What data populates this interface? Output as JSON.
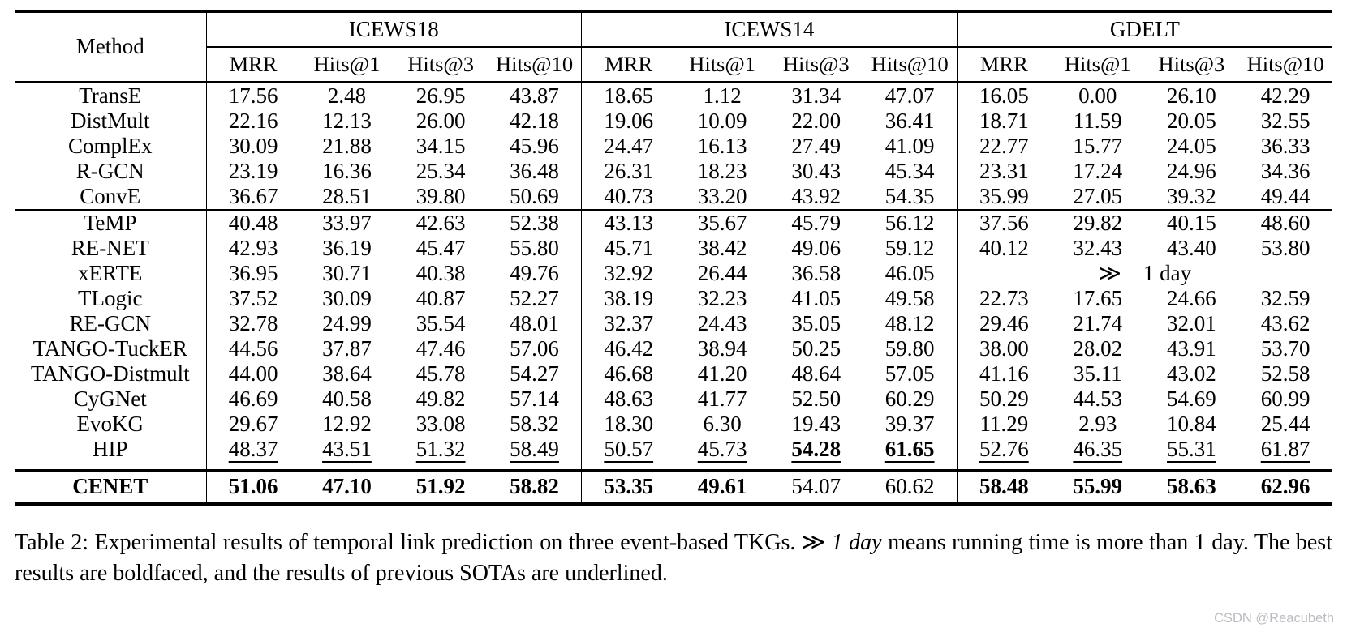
{
  "table": {
    "method_header": "Method",
    "datasets": [
      "ICEWS18",
      "ICEWS14",
      "GDELT"
    ],
    "metrics": [
      "MRR",
      "Hits@1",
      "Hits@3",
      "Hits@10"
    ],
    "groups": [
      {
        "rows": [
          {
            "method": "TransE",
            "cells": [
              "17.56",
              "2.48",
              "26.95",
              "43.87",
              "18.65",
              "1.12",
              "31.34",
              "47.07",
              "16.05",
              "0.00",
              "26.10",
              "42.29"
            ]
          },
          {
            "method": "DistMult",
            "cells": [
              "22.16",
              "12.13",
              "26.00",
              "42.18",
              "19.06",
              "10.09",
              "22.00",
              "36.41",
              "18.71",
              "11.59",
              "20.05",
              "32.55"
            ]
          },
          {
            "method": "ComplEx",
            "cells": [
              "30.09",
              "21.88",
              "34.15",
              "45.96",
              "24.47",
              "16.13",
              "27.49",
              "41.09",
              "22.77",
              "15.77",
              "24.05",
              "36.33"
            ]
          },
          {
            "method": "R-GCN",
            "cells": [
              "23.19",
              "16.36",
              "25.34",
              "36.48",
              "26.31",
              "18.23",
              "30.43",
              "45.34",
              "23.31",
              "17.24",
              "24.96",
              "34.36"
            ]
          },
          {
            "method": "ConvE",
            "cells": [
              "36.67",
              "28.51",
              "39.80",
              "50.69",
              "40.73",
              "33.20",
              "43.92",
              "54.35",
              "35.99",
              "27.05",
              "39.32",
              "49.44"
            ]
          }
        ]
      },
      {
        "rows": [
          {
            "method": "TeMP",
            "cells": [
              "40.48",
              "33.97",
              "42.63",
              "52.38",
              "43.13",
              "35.67",
              "45.79",
              "56.12",
              "37.56",
              "29.82",
              "40.15",
              "48.60"
            ]
          },
          {
            "method": "RE-NET",
            "cells": [
              "42.93",
              "36.19",
              "45.47",
              "55.80",
              "45.71",
              "38.42",
              "49.06",
              "59.12",
              "40.12",
              "32.43",
              "43.40",
              "53.80"
            ]
          },
          {
            "method": "xERTE",
            "cells": [
              "36.95",
              "30.71",
              "40.38",
              "49.76",
              "32.92",
              "26.44",
              "36.58",
              "46.05",
              {
                "t": "≫  1 day",
                "span": 4
              }
            ]
          },
          {
            "method": "TLogic",
            "cells": [
              "37.52",
              "30.09",
              "40.87",
              "52.27",
              "38.19",
              "32.23",
              "41.05",
              "49.58",
              "22.73",
              "17.65",
              "24.66",
              "32.59"
            ]
          },
          {
            "method": "RE-GCN",
            "cells": [
              "32.78",
              "24.99",
              "35.54",
              "48.01",
              "32.37",
              "24.43",
              "35.05",
              "48.12",
              "29.46",
              "21.74",
              "32.01",
              "43.62"
            ]
          },
          {
            "method": "TANGO-TuckER",
            "cells": [
              "44.56",
              "37.87",
              "47.46",
              "57.06",
              "46.42",
              "38.94",
              "50.25",
              "59.80",
              "38.00",
              "28.02",
              "43.91",
              "53.70"
            ]
          },
          {
            "method": "TANGO-Distmult",
            "cells": [
              "44.00",
              "38.64",
              "45.78",
              "54.27",
              "46.68",
              "41.20",
              "48.64",
              "57.05",
              "41.16",
              "35.11",
              "43.02",
              "52.58"
            ]
          },
          {
            "method": "CyGNet",
            "cells": [
              "46.69",
              "40.58",
              "49.82",
              "57.14",
              "48.63",
              "41.77",
              "52.50",
              "60.29",
              "50.29",
              "44.53",
              "54.69",
              "60.99"
            ]
          },
          {
            "method": "EvoKG",
            "cells": [
              "29.67",
              "12.92",
              "33.08",
              "58.32",
              "18.30",
              "6.30",
              "19.43",
              "39.37",
              "11.29",
              "2.93",
              "10.84",
              "25.44"
            ]
          },
          {
            "method": "HIP",
            "cells": [
              "48.37",
              "43.51",
              "51.32",
              "58.49",
              "50.57",
              "45.73",
              "54.28",
              "61.65",
              "52.76",
              "46.35",
              "55.31",
              "61.87"
            ],
            "cell_fmt": [
              "u",
              "u",
              "u",
              "u",
              "u",
              "u",
              "bu",
              "bu",
              "u",
              "u",
              "u",
              "u"
            ]
          }
        ]
      },
      {
        "rows": [
          {
            "method": "CENET",
            "fmt": "b",
            "cells": [
              "51.06",
              "47.10",
              "51.92",
              "58.82",
              "53.35",
              "49.61",
              "54.07",
              "60.62",
              "58.48",
              "55.99",
              "58.63",
              "62.96"
            ],
            "cell_fmt": [
              "b",
              "b",
              "b",
              "b",
              "b",
              "b",
              "",
              "",
              "b",
              "b",
              "b",
              "b"
            ]
          }
        ]
      }
    ]
  },
  "caption": {
    "part1": "Table 2: Experimental results of temporal link prediction on three event-based TKGs. ≫ ",
    "italic": "1 day",
    "part2": " means running time is more than 1 day. The best results are boldfaced, and the results of previous SOTAs are underlined."
  },
  "watermark": "CSDN @Reacubeth"
}
